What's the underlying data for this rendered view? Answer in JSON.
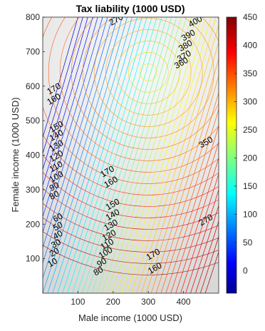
{
  "chart_data": {
    "type": "contour",
    "title": "Tax liability (1000 USD)",
    "xlabel": "Male income (1000 USD)",
    "ylabel": "Female income (1000 USD)",
    "xlim": [
      0,
      500
    ],
    "ylim": [
      0,
      800
    ],
    "xticks": [
      "100",
      "200",
      "300",
      "400"
    ],
    "yticks": [
      "100",
      "200",
      "300",
      "400",
      "500",
      "600",
      "700",
      "800"
    ],
    "colorbar": {
      "range": [
        -40,
        450
      ],
      "ticks": [
        "0",
        "50",
        "100",
        "150",
        "200",
        "250",
        "300",
        "350",
        "400",
        "450"
      ],
      "colormap": "jet"
    },
    "contour_labels": [
      {
        "text": "170",
        "x": 18,
        "y": 575
      },
      {
        "text": "160",
        "x": 18,
        "y": 545
      },
      {
        "text": "150",
        "x": 25,
        "y": 465
      },
      {
        "text": "140",
        "x": 25,
        "y": 440
      },
      {
        "text": "130",
        "x": 25,
        "y": 410
      },
      {
        "text": "120",
        "x": 25,
        "y": 380
      },
      {
        "text": "110",
        "x": 25,
        "y": 350
      },
      {
        "text": "100",
        "x": 25,
        "y": 320
      },
      {
        "text": "90",
        "x": 25,
        "y": 295
      },
      {
        "text": "80",
        "x": 25,
        "y": 270
      },
      {
        "text": "60",
        "x": 35,
        "y": 205
      },
      {
        "text": "50",
        "x": 35,
        "y": 180
      },
      {
        "text": "40",
        "x": 35,
        "y": 155
      },
      {
        "text": "30",
        "x": 30,
        "y": 130
      },
      {
        "text": "20",
        "x": 25,
        "y": 105
      },
      {
        "text": "10",
        "x": 20,
        "y": 75
      },
      {
        "text": "170",
        "x": 170,
        "y": 335
      },
      {
        "text": "160",
        "x": 180,
        "y": 305
      },
      {
        "text": "150",
        "x": 185,
        "y": 240
      },
      {
        "text": "140",
        "x": 185,
        "y": 210
      },
      {
        "text": "130",
        "x": 180,
        "y": 180
      },
      {
        "text": "120",
        "x": 175,
        "y": 150
      },
      {
        "text": "110",
        "x": 170,
        "y": 125
      },
      {
        "text": "100",
        "x": 165,
        "y": 100
      },
      {
        "text": "90",
        "x": 160,
        "y": 75
      },
      {
        "text": "80",
        "x": 150,
        "y": 50
      },
      {
        "text": "170",
        "x": 300,
        "y": 95
      },
      {
        "text": "160",
        "x": 305,
        "y": 55
      },
      {
        "text": "400",
        "x": 420,
        "y": 770
      },
      {
        "text": "390",
        "x": 400,
        "y": 730
      },
      {
        "text": "380",
        "x": 392,
        "y": 700
      },
      {
        "text": "370",
        "x": 388,
        "y": 670
      },
      {
        "text": "360",
        "x": 380,
        "y": 650
      },
      {
        "text": "350",
        "x": 450,
        "y": 420
      },
      {
        "text": "270",
        "x": 450,
        "y": 195
      },
      {
        "text": "270",
        "x": 195,
        "y": 775
      }
    ]
  }
}
